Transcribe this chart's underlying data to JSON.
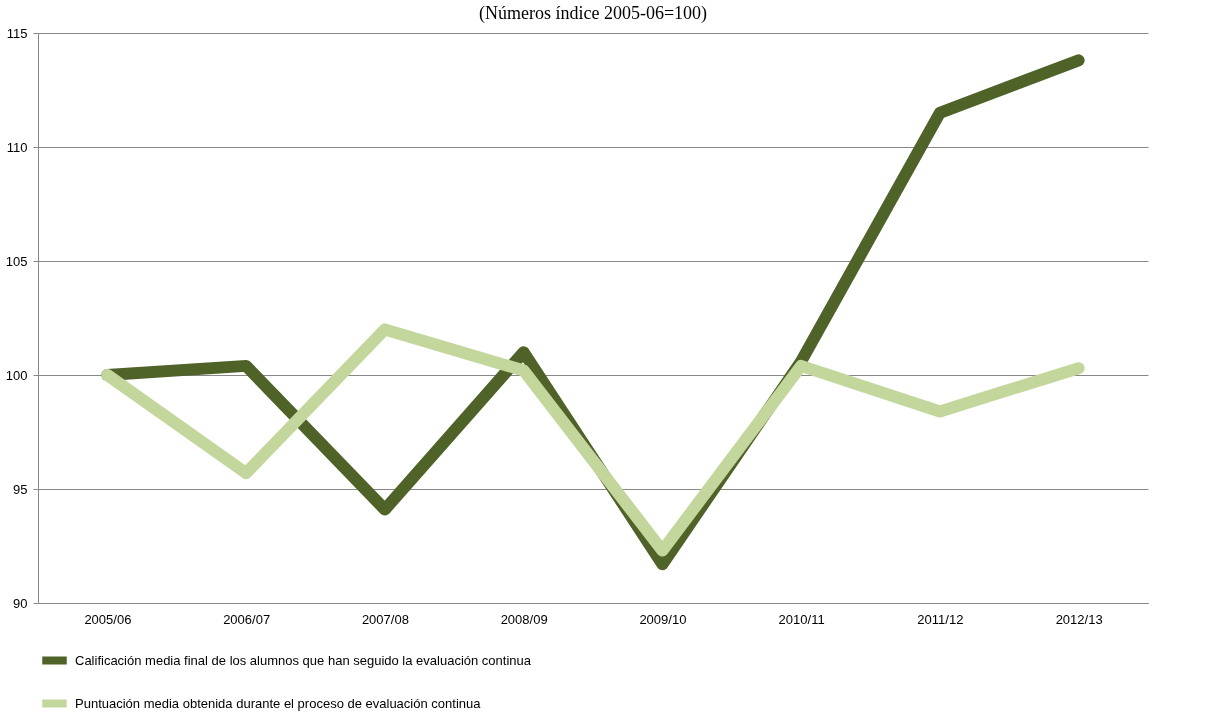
{
  "chart_data": {
    "type": "line",
    "title": "(Números índice 2005-06=100)",
    "categories": [
      "2005/06",
      "2006/07",
      "2007/08",
      "2008/09",
      "2009/10",
      "2010/11",
      "2011/12",
      "2012/13"
    ],
    "series": [
      {
        "name": "Calificación media final de los alumnos que han seguido la evaluación continua",
        "color": "#4f6228",
        "values": [
          100,
          100.4,
          94.1,
          101.0,
          91.7,
          100.6,
          111.5,
          113.8
        ]
      },
      {
        "name": "Puntuación media obtenida durante el proceso de evaluación continua",
        "color": "#c3d69b",
        "values": [
          100,
          95.7,
          102.0,
          100.2,
          92.3,
          100.4,
          98.4,
          100.3
        ]
      }
    ],
    "ylim": [
      90,
      115
    ],
    "yticks": [
      90,
      95,
      100,
      105,
      110,
      115
    ],
    "grid": "y",
    "legend": "bottom",
    "marker": "none",
    "line_style": "solid"
  }
}
